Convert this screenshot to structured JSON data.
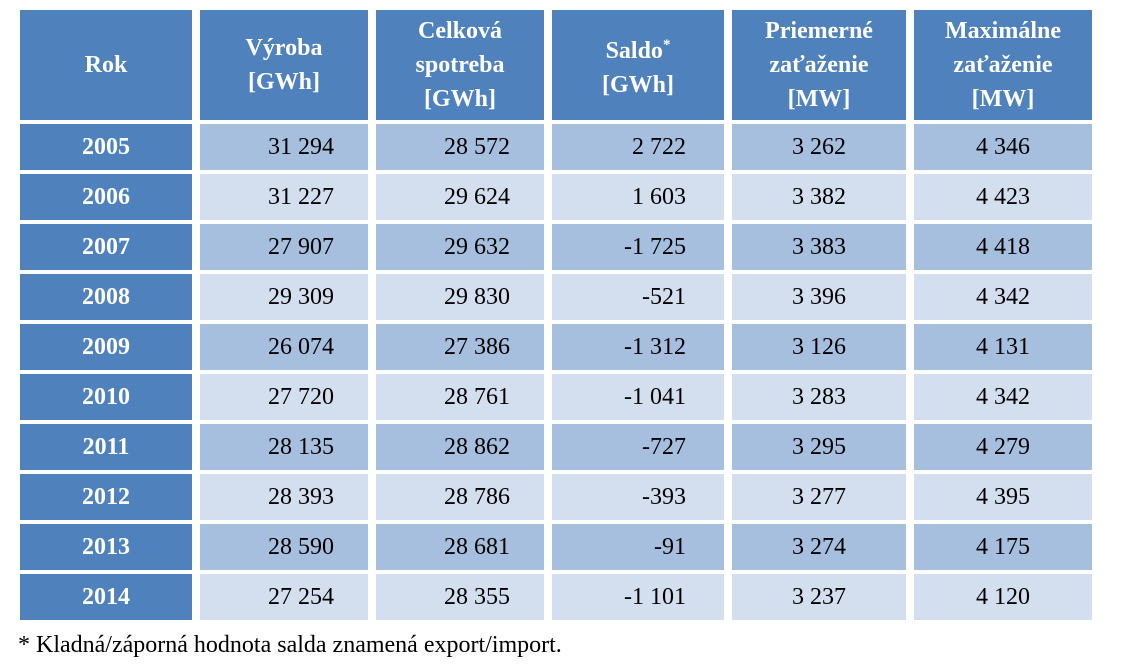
{
  "table": {
    "header": [
      {
        "lines": [
          "Rok"
        ]
      },
      {
        "lines": [
          "Výroba",
          "[GWh]"
        ]
      },
      {
        "lines": [
          "Celková",
          "spotreba",
          "[GWh]"
        ]
      },
      {
        "lines": [
          "Saldo",
          "[GWh]"
        ],
        "sup": "*"
      },
      {
        "lines": [
          "Priemerné",
          "zaťaženie",
          "[MW]"
        ]
      },
      {
        "lines": [
          "Maximálne",
          "zaťaženie",
          "[MW]"
        ]
      }
    ],
    "rows": [
      [
        "2005",
        "31 294",
        "28 572",
        "2 722",
        "3 262",
        "4 346"
      ],
      [
        "2006",
        "31 227",
        "29 624",
        "1 603",
        "3 382",
        "4 423"
      ],
      [
        "2007",
        "27 907",
        "29 632",
        "-1 725",
        "3 383",
        "4 418"
      ],
      [
        "2008",
        "29 309",
        "29 830",
        "-521",
        "3 396",
        "4 342"
      ],
      [
        "2009",
        "26 074",
        "27 386",
        "-1 312",
        "3 126",
        "4 131"
      ],
      [
        "2010",
        "27 720",
        "28 761",
        "-1 041",
        "3 283",
        "4 342"
      ],
      [
        "2011",
        "28 135",
        "28 862",
        "-727",
        "3 295",
        "4 279"
      ],
      [
        "2012",
        "28 393",
        "28 786",
        "-393",
        "3 277",
        "4 395"
      ],
      [
        "2013",
        "28 590",
        "28 681",
        "-91",
        "3 274",
        "4 175"
      ],
      [
        "2014",
        "27 254",
        "28 355",
        "-1 101",
        "3 237",
        "4 120"
      ]
    ]
  },
  "footnote": "* Kladná/záporná hodnota salda znamená export/import."
}
